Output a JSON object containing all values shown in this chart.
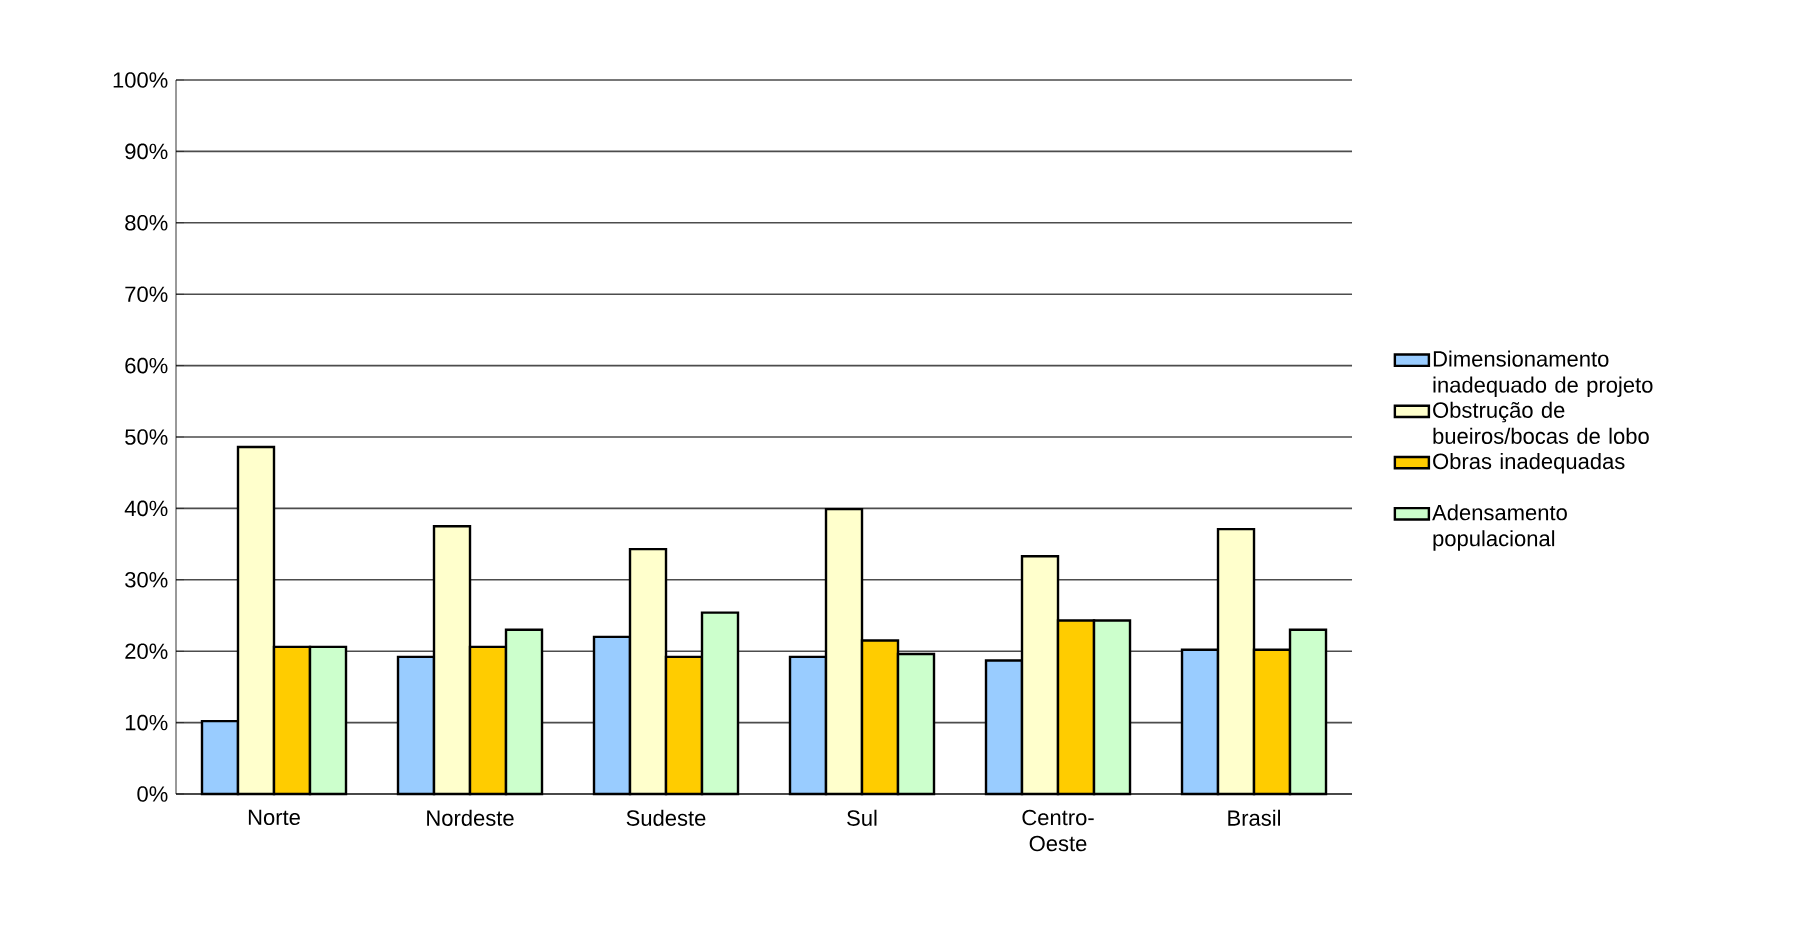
{
  "chart_data": {
    "type": "bar",
    "categories": [
      "Norte",
      "Nordeste",
      "Sudeste",
      "Sul",
      "Centro-Oeste",
      "Brasil"
    ],
    "series": [
      {
        "name": "Dimensionamento inadequado de projeto",
        "color": "#99ccff",
        "values": [
          10.2,
          19.2,
          22.0,
          19.2,
          18.7,
          20.2
        ]
      },
      {
        "name": "Obstrução de bueiros/bocas de lobo",
        "color": "#ffffcc",
        "values": [
          48.6,
          37.5,
          34.3,
          39.9,
          33.3,
          37.1
        ]
      },
      {
        "name": "Obras inadequadas",
        "color": "#ffcc00",
        "values": [
          20.6,
          20.6,
          19.2,
          21.5,
          24.3,
          20.2
        ]
      },
      {
        "name": "Adensamento populacional",
        "color": "#ccffcc",
        "values": [
          20.6,
          23.0,
          25.4,
          19.6,
          24.3,
          23.0
        ]
      }
    ],
    "ylim": [
      0,
      100
    ],
    "yticks": [
      {
        "value": 0,
        "label": "0%"
      },
      {
        "value": 10,
        "label": "10%"
      },
      {
        "value": 20,
        "label": "20%"
      },
      {
        "value": 30,
        "label": "30%"
      },
      {
        "value": 40,
        "label": "40%"
      },
      {
        "value": 50,
        "label": "50%"
      },
      {
        "value": 60,
        "label": "60%"
      },
      {
        "value": 70,
        "label": "70%"
      },
      {
        "value": 80,
        "label": "80%"
      },
      {
        "value": 90,
        "label": "90%"
      },
      {
        "value": 100,
        "label": "100%"
      }
    ],
    "grid": "y",
    "legend": "right"
  }
}
